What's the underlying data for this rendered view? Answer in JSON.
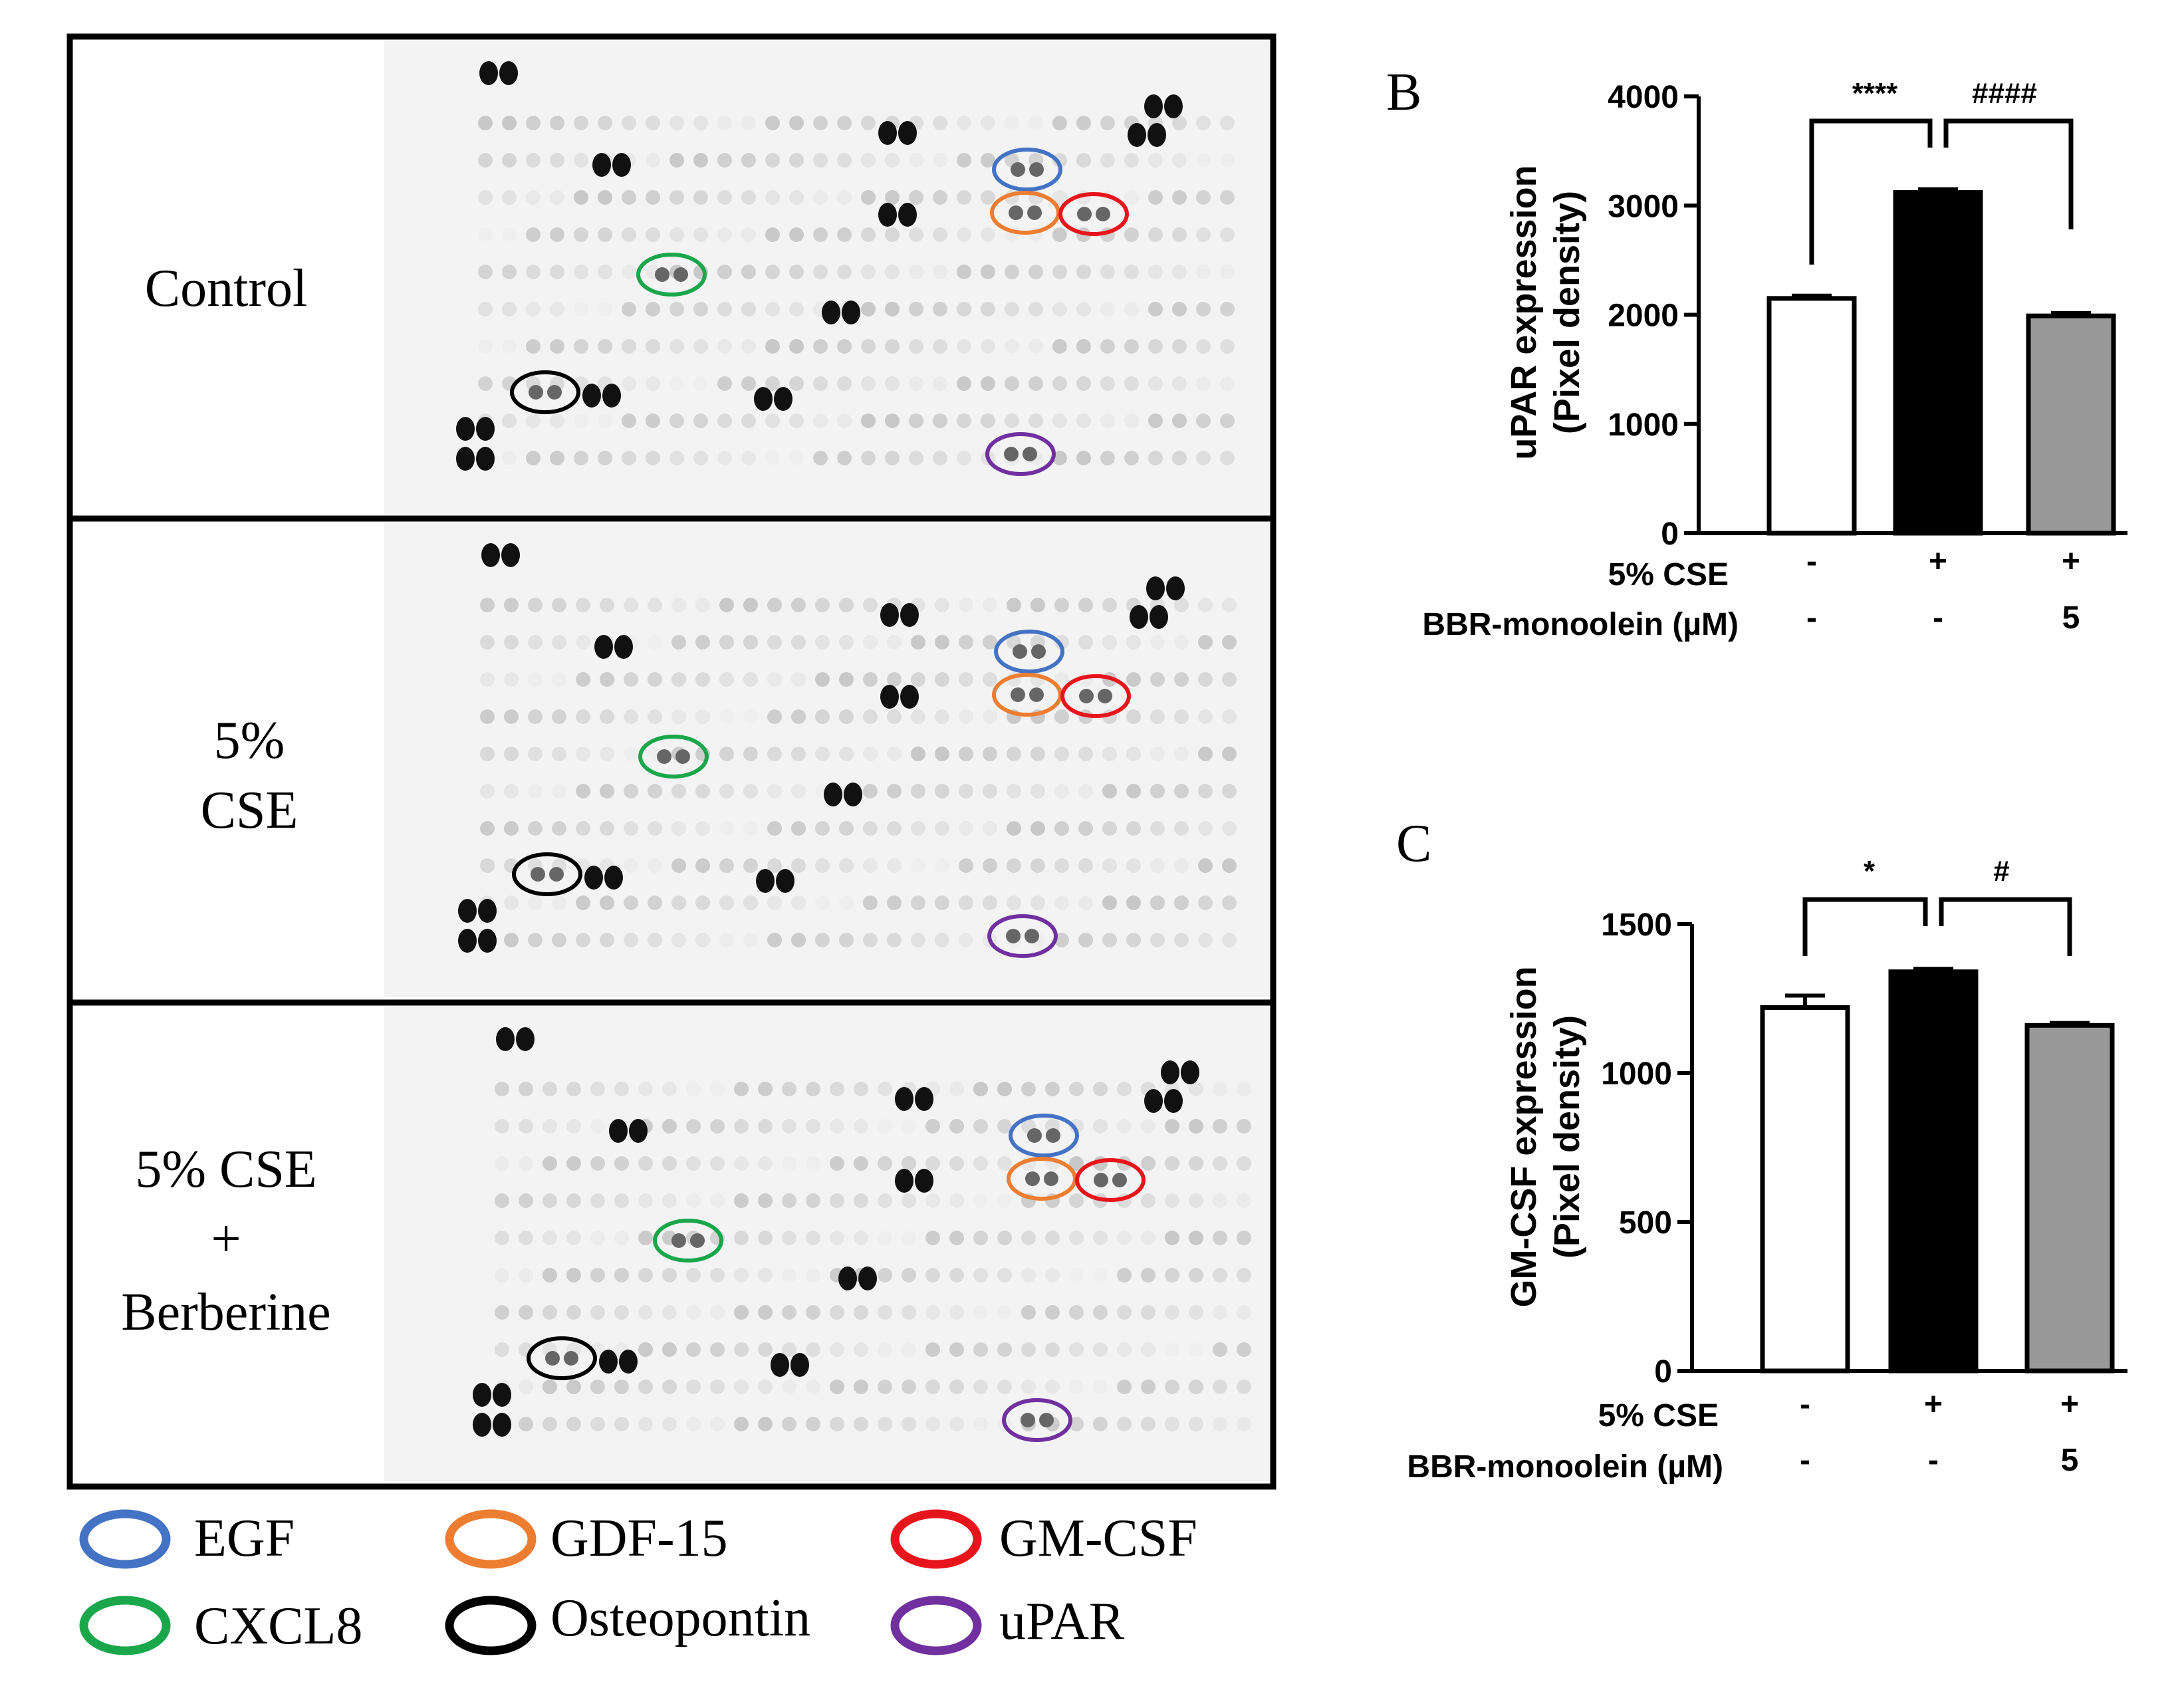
{
  "panel_a": {
    "rows": [
      {
        "label_lines": [
          "Control"
        ]
      },
      {
        "label_lines": [
          "5%",
          "CSE"
        ]
      },
      {
        "label_lines": [
          "5% CSE",
          "+",
          "Berberine"
        ]
      }
    ],
    "legend": [
      {
        "label": "EGF",
        "color": "#4472c4"
      },
      {
        "label": "GDF-15",
        "color": "#ed7d31"
      },
      {
        "label": "GM-CSF",
        "color": "#e8141b"
      },
      {
        "label": "CXCL8",
        "color": "#1aa64b"
      },
      {
        "label": "Osteopontin",
        "color": "#000000"
      },
      {
        "label": "uPAR",
        "color": "#7030a0"
      }
    ]
  },
  "chart_data": [
    {
      "panel_letter": "B",
      "type": "bar",
      "ylabel": "uPAR expression",
      "ylabel_sub": "(Pixel density)",
      "ylim": [
        0,
        4000
      ],
      "yticks": [
        0,
        1000,
        2000,
        3000,
        4000
      ],
      "categories": [
        "Control",
        "5% CSE",
        "5% CSE + BBR-monoolein"
      ],
      "values": [
        2150,
        3120,
        1990
      ],
      "errors": [
        25,
        30,
        25
      ],
      "bar_colors": [
        "#ffffff",
        "#000000",
        "#999999"
      ],
      "significance": [
        {
          "from": 0,
          "to": 1,
          "label": "****"
        },
        {
          "from": 1,
          "to": 2,
          "label": "####"
        }
      ],
      "conditions": [
        {
          "label": "5% CSE",
          "marks": [
            "-",
            "+",
            "+"
          ]
        },
        {
          "label": "BBR-monoolein (µM)",
          "marks": [
            "-",
            "-",
            "5"
          ]
        }
      ]
    },
    {
      "panel_letter": "C",
      "type": "bar",
      "ylabel": "GM-CSF expression",
      "ylabel_sub": "(Pixel density)",
      "ylim": [
        0,
        1500
      ],
      "yticks": [
        0,
        500,
        1000,
        1500
      ],
      "categories": [
        "Control",
        "5% CSE",
        "5% CSE + BBR-monoolein"
      ],
      "values": [
        1220,
        1340,
        1160
      ],
      "errors": [
        40,
        10,
        8
      ],
      "bar_colors": [
        "#ffffff",
        "#000000",
        "#999999"
      ],
      "significance": [
        {
          "from": 0,
          "to": 1,
          "label": "*"
        },
        {
          "from": 1,
          "to": 2,
          "label": "#"
        }
      ],
      "conditions": [
        {
          "label": "5% CSE",
          "marks": [
            "-",
            "+",
            "+"
          ]
        },
        {
          "label": "BBR-monoolein (µM)",
          "marks": [
            "-",
            "-",
            "5"
          ]
        }
      ]
    }
  ]
}
